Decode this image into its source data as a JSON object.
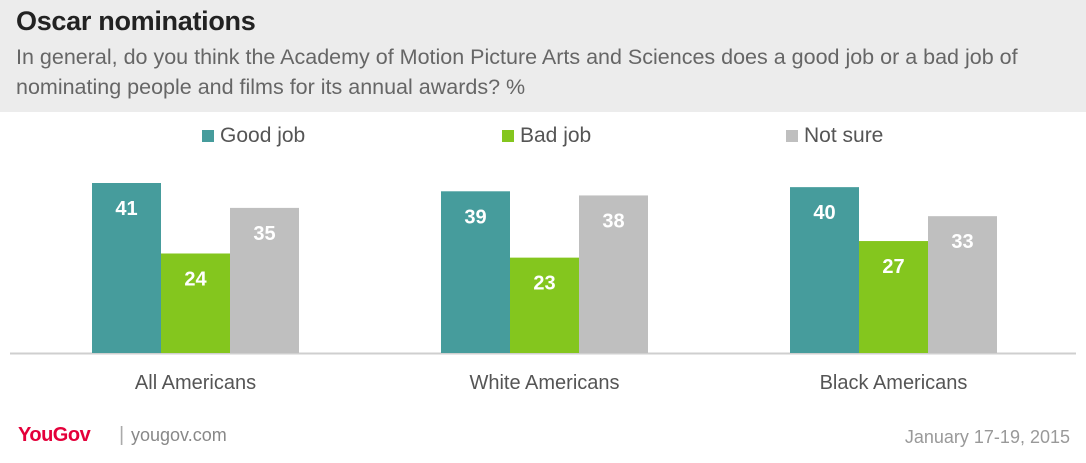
{
  "header": {
    "title": "Oscar nominations",
    "subtitle": "In general, do you think the Academy of Motion Picture Arts and Sciences does a good job or a bad job of nominating people and films for its annual awards? %"
  },
  "chart_data": {
    "type": "bar",
    "categories": [
      "All Americans",
      "White Americans",
      "Black Americans"
    ],
    "series": [
      {
        "name": "Good job",
        "color": "#469c9c",
        "values": [
          41,
          39,
          40
        ]
      },
      {
        "name": "Bad job",
        "color": "#84c61e",
        "values": [
          24,
          23,
          27
        ]
      },
      {
        "name": "Not sure",
        "color": "#bfbfbf",
        "values": [
          35,
          38,
          33
        ]
      }
    ],
    "ylim": [
      0,
      41
    ],
    "legend": "top",
    "grid": false,
    "xlabel": "",
    "ylabel": ""
  },
  "footer": {
    "brand": "YouGov",
    "separator": "|",
    "url": "yougov.com",
    "date": "January 17-19, 2015"
  }
}
